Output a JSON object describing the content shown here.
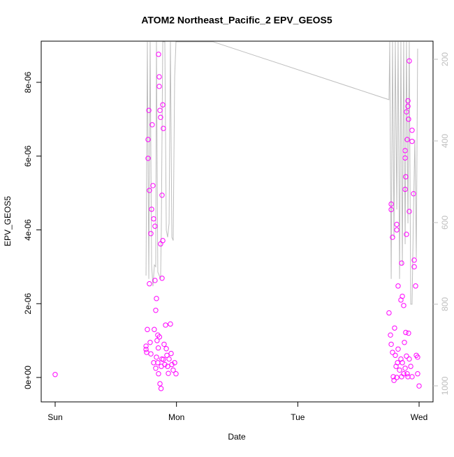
{
  "chart_data": {
    "type": "scatter",
    "title": "ATOM2 Northeast_Pacific_2 EPV_GEOS5",
    "x_label": "Date",
    "y_label": "EPV_GEOS5",
    "xlim": [
      -0.115,
      3.115
    ],
    "xticks": [
      {
        "value": 0,
        "label": "Sun"
      },
      {
        "value": 1,
        "label": "Mon"
      },
      {
        "value": 2,
        "label": "Tue"
      },
      {
        "value": 3,
        "label": "Wed"
      }
    ],
    "ylim": [
      -6.62e-07,
      9.116e-06
    ],
    "yticks": [
      {
        "value": 0,
        "label": "0e+00"
      },
      {
        "value": 2e-06,
        "label": "2e-06"
      },
      {
        "value": 4e-06,
        "label": "4e-06"
      },
      {
        "value": 6e-06,
        "label": "6e-06"
      },
      {
        "value": 8e-06,
        "label": "8e-06"
      }
    ],
    "y2lim": [
      1039.3,
      155.6
    ],
    "y2ticks": [
      200,
      400,
      600,
      800,
      1000
    ],
    "scatter": {
      "color": "#ff00ff",
      "x": [
        0.749,
        0.749,
        0.754,
        0.76,
        0.766,
        0.766,
        0.772,
        0.777,
        0.777,
        0.783,
        0.789,
        0.789,
        0.795,
        0.8,
        0.806,
        0.812,
        0.812,
        0.817,
        0.823,
        0.823,
        0.829,
        0.829,
        0.835,
        0.835,
        0.84,
        0.846,
        0.846,
        0.852,
        0.852,
        0.858,
        0.858,
        0.864,
        0.864,
        0.869,
        0.869,
        0.875,
        0.881,
        0.881,
        0.887,
        0.887,
        0.892,
        0.892,
        0.898,
        0.904,
        0.91,
        0.916,
        0.921,
        0.927,
        0.933,
        0.939,
        0.95,
        0.956,
        0.962,
        0.973,
        0.985,
        0.996,
        0.873,
        0.85,
        0.86,
        0.88,
        2.77,
        2.77,
        2.781,
        2.816,
        2.816,
        2.827,
        2.856,
        2.85,
        2.862,
        2.873,
        2.885,
        2.885,
        2.885,
        2.89,
        2.896,
        2.902,
        2.908,
        2.908,
        2.913,
        2.919,
        2.942,
        2.942,
        2.954,
        2.96,
        2.96,
        2.971,
        2.919,
        2.896,
        2.752,
        2.764,
        2.77,
        2.781,
        2.787,
        2.793,
        2.798,
        2.804,
        2.81,
        2.816,
        2.822,
        2.827,
        2.839,
        2.85,
        2.856,
        2.862,
        2.873,
        2.879,
        2.885,
        2.89,
        2.896,
        2.902,
        2.908,
        2.913,
        2.919,
        2.931,
        2.942,
        2.977,
        2.988,
        2.988,
        3.0,
        0.0
      ],
      "y": [
        8.5e-07,
        7.6e-07,
        6.8e-07,
        1.3e-06,
        6.45e-06,
        5.94e-06,
        7.24e-06,
        5.07e-06,
        2.54e-06,
        9.5e-07,
        6.4e-07,
        3.9e-06,
        4.56e-06,
        6.85e-06,
        5.2e-06,
        4.3e-06,
        4e-07,
        1.3e-06,
        4.1e-06,
        2.63e-06,
        1.82e-06,
        2.5e-07,
        2.14e-06,
        5.5e-07,
        1e-06,
        4e-07,
        1.15e-06,
        8.76e-06,
        1e-07,
        8.15e-06,
        7.89e-06,
        7.24e-06,
        -1.7e-07,
        7.05e-06,
        3.62e-06,
        3e-07,
        4.94e-06,
        2.69e-06,
        7.39e-06,
        3.71e-06,
        6.75e-06,
        4.9e-07,
        9e-07,
        3.5e-07,
        1.42e-06,
        7.8e-07,
        6e-07,
        3e-07,
        1.1e-07,
        5e-07,
        1.45e-06,
        6.5e-07,
        3.5e-07,
        2e-07,
        4e-07,
        1e-07,
        -3e-07,
        8e-07,
        1.1e-06,
        5e-07,
        4.7e-06,
        4.55e-06,
        3.8e-06,
        4.15e-06,
        4e-06,
        2.48e-06,
        3.1e-06,
        2.1e-06,
        2.2e-06,
        1.95e-06,
        5.1e-06,
        6.15e-06,
        5.95e-06,
        5.44e-06,
        3.88e-06,
        6.45e-06,
        7.5e-06,
        7.35e-06,
        7e-06,
        4.5e-06,
        6.4e-06,
        6.7e-06,
        4.98e-06,
        3.18e-06,
        3e-06,
        2.48e-06,
        8.58e-06,
        7.2e-06,
        1.75e-06,
        1.15e-06,
        9e-07,
        6.8e-07,
        2e-08,
        -8e-08,
        1.34e-06,
        6e-07,
        3e-07,
        0.0,
        4e-07,
        7.7e-07,
        2e-07,
        5e-07,
        2e-08,
        4e-07,
        1e-07,
        9.5e-07,
        2.5e-07,
        1.22e-06,
        5.8e-07,
        1e-07,
        2e-08,
        1.2e-06,
        5e-07,
        3e-07,
        2e-08,
        6e-07,
        1e-07,
        5.5e-07,
        -2.3e-07,
        8e-08
      ]
    },
    "line": {
      "color": "#bebebe",
      "axis": "y2",
      "x": [
        0.749,
        0.76,
        0.772,
        0.783,
        0.795,
        0.806,
        0.818,
        0.829,
        0.835,
        0.846,
        0.858,
        0.869,
        0.875,
        0.887,
        0.904,
        0.916,
        0.927,
        0.939,
        0.95,
        0.962,
        0.973,
        0.985,
        0.996,
        1.008,
        1.301,
        2.752,
        2.758,
        2.77,
        2.781,
        2.793,
        2.804,
        2.816,
        2.827,
        2.839,
        2.85,
        2.862,
        2.873,
        2.885,
        2.896,
        2.908,
        2.919,
        2.931,
        2.942,
        2.954,
        2.965,
        2.977,
        2.988
      ],
      "values": [
        730,
        157,
        738,
        157,
        704,
        756,
        704,
        708,
        157,
        721,
        730,
        738,
        619,
        157,
        157,
        619,
        636,
        602,
        157,
        636,
        644,
        243,
        157,
        157,
        157,
        299,
        157,
        738,
        157,
        636,
        157,
        568,
        157,
        738,
        157,
        704,
        157,
        653,
        157,
        602,
        157,
        800,
        800,
        568,
        397,
        687,
        174
      ]
    }
  }
}
